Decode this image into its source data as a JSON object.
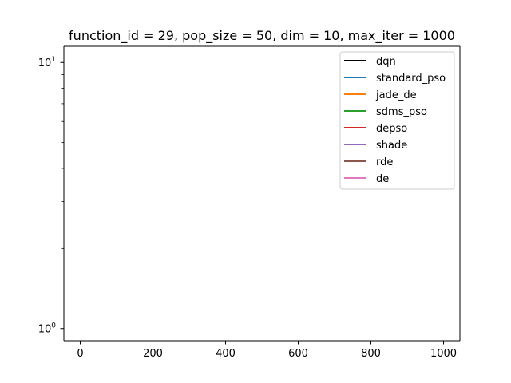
{
  "chart_data": {
    "type": "line",
    "title": "function_id = 29, pop_size = 50, dim = 10, max_iter = 1000",
    "xlabel": "",
    "ylabel": "",
    "xlim": [
      -45,
      1045
    ],
    "ylim": [
      0.9,
      11.5
    ],
    "yscale": "log",
    "x_ticks": [
      0,
      200,
      400,
      600,
      800,
      1000
    ],
    "x_tick_labels": [
      "0",
      "200",
      "400",
      "600",
      "800",
      "1000"
    ],
    "y_ticks": [
      1,
      10
    ],
    "y_tick_labels": [
      {
        "base": "10",
        "exp": "0"
      },
      {
        "base": "10",
        "exp": "1"
      }
    ],
    "grid": false,
    "legend_position": "top-right",
    "series": [
      {
        "name": "dqn",
        "color": "#000000",
        "values": []
      },
      {
        "name": "standard_pso",
        "color": "#1f77b4",
        "values": []
      },
      {
        "name": "jade_de",
        "color": "#ff7f0e",
        "values": []
      },
      {
        "name": "sdms_pso",
        "color": "#2ca02c",
        "values": []
      },
      {
        "name": "depso",
        "color": "#d62728",
        "values": []
      },
      {
        "name": "shade",
        "color": "#9467bd",
        "values": []
      },
      {
        "name": "rde",
        "color": "#8c564b",
        "values": []
      },
      {
        "name": "de",
        "color": "#e377c2",
        "values": []
      }
    ]
  }
}
